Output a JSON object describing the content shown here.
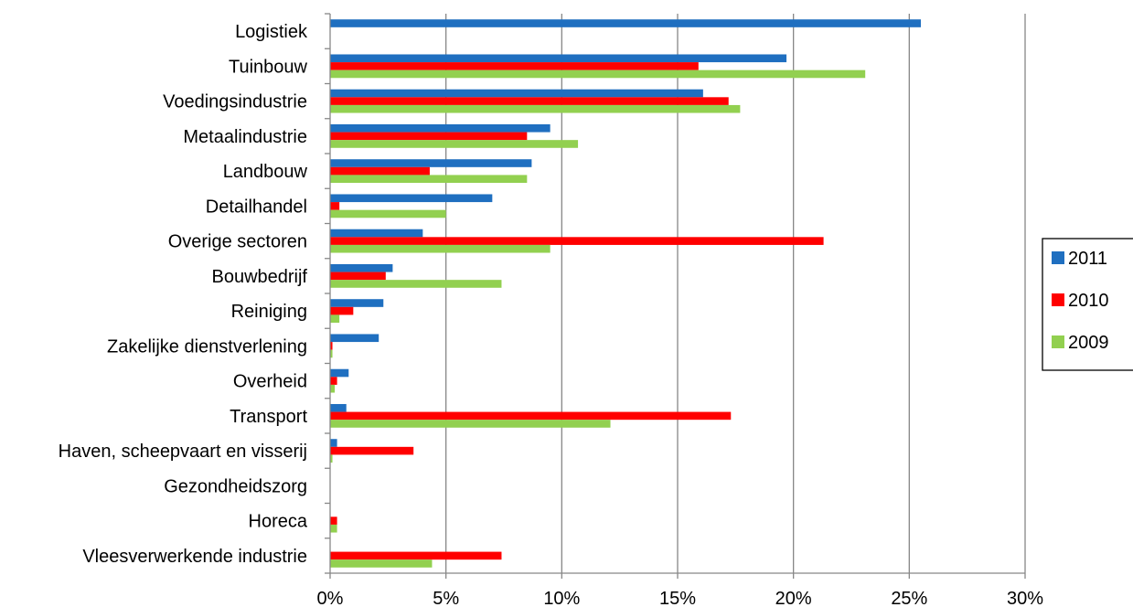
{
  "chart_data": {
    "type": "bar",
    "orientation": "horizontal",
    "categories": [
      "Logistiek",
      "Tuinbouw",
      "Voedingsindustrie",
      "Metaalindustrie",
      "Landbouw",
      "Detailhandel",
      "Overige sectoren",
      "Bouwbedrijf",
      "Reiniging",
      "Zakelijke dienstverlening",
      "Overheid",
      "Transport",
      "Haven, scheepvaart en visserij",
      "Gezondheidszorg",
      "Horeca",
      "Vleesverwerkende industrie"
    ],
    "series": [
      {
        "name": "2011",
        "color": "#1F6FC0",
        "values": [
          25.5,
          19.7,
          16.1,
          9.5,
          8.7,
          7.0,
          4.0,
          2.7,
          2.3,
          2.1,
          0.8,
          0.7,
          0.3,
          0.0,
          0.0,
          0.0
        ]
      },
      {
        "name": "2010",
        "color": "#FF0000",
        "values": [
          0.0,
          15.9,
          17.2,
          8.5,
          4.3,
          0.4,
          21.3,
          2.4,
          1.0,
          0.1,
          0.3,
          17.3,
          3.6,
          0.0,
          0.3,
          7.4
        ]
      },
      {
        "name": "2009",
        "color": "#92D050",
        "values": [
          0.0,
          23.1,
          17.7,
          10.7,
          8.5,
          5.0,
          9.5,
          7.4,
          0.4,
          0.1,
          0.2,
          12.1,
          0.1,
          0.0,
          0.3,
          4.4
        ]
      }
    ],
    "xlim": [
      0,
      30
    ],
    "x_ticks": [
      "0%",
      "5%",
      "10%",
      "15%",
      "20%",
      "25%",
      "30%"
    ],
    "xlabel": "",
    "ylabel": "",
    "title": "",
    "grid": "vertical",
    "legend_position": "right"
  }
}
